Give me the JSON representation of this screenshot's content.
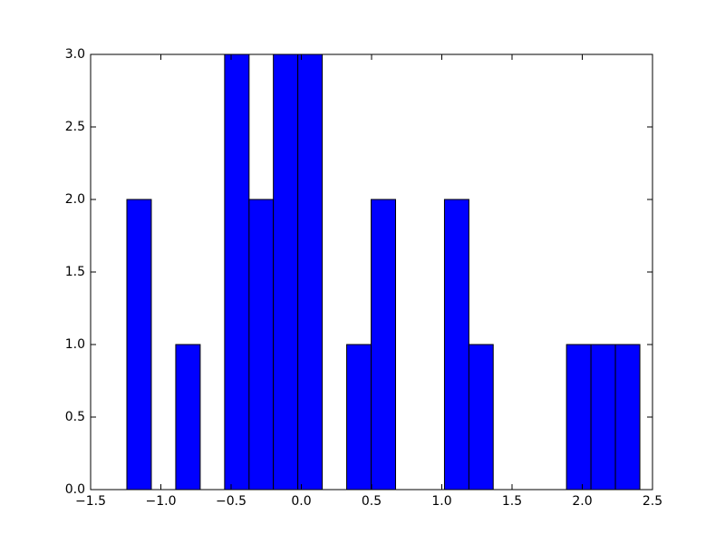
{
  "chart_data": {
    "type": "histogram",
    "bins": [
      -1.242,
      -1.068,
      -0.894,
      -0.72,
      -0.546,
      -0.372,
      -0.199,
      -0.025,
      0.149,
      0.323,
      0.497,
      0.671,
      0.845,
      1.019,
      1.193,
      1.366,
      1.54,
      1.714,
      1.888,
      2.062,
      2.236,
      2.41
    ],
    "values": [
      2,
      0,
      1,
      0,
      3,
      2,
      3,
      3,
      0,
      1,
      2,
      0,
      0,
      2,
      1,
      0,
      0,
      0,
      1,
      1,
      1
    ],
    "color": "#0000ff",
    "xlim": [
      -1.5,
      2.5
    ],
    "xticks": [
      {
        "value": -1.5,
        "label": "−1.5"
      },
      {
        "value": -1.0,
        "label": "−1.0"
      },
      {
        "value": -0.5,
        "label": "−0.5"
      },
      {
        "value": 0,
        "label": "0.0"
      },
      {
        "value": 0.5,
        "label": "0.5"
      },
      {
        "value": 1.0,
        "label": "1.0"
      },
      {
        "value": 1.5,
        "label": "1.5"
      },
      {
        "value": 2.0,
        "label": "2.0"
      },
      {
        "value": 2.5,
        "label": "2.5"
      }
    ],
    "ylim": [
      0,
      3
    ],
    "yticks": [
      {
        "value": 0,
        "label": "0.0"
      },
      {
        "value": 0.5,
        "label": "0.5"
      },
      {
        "value": 1.0,
        "label": "1.0"
      },
      {
        "value": 1.5,
        "label": "1.5"
      },
      {
        "value": 2.0,
        "label": "2.0"
      },
      {
        "value": 2.5,
        "label": "2.5"
      },
      {
        "value": 3.0,
        "label": "3.0"
      }
    ],
    "grid": false
  }
}
